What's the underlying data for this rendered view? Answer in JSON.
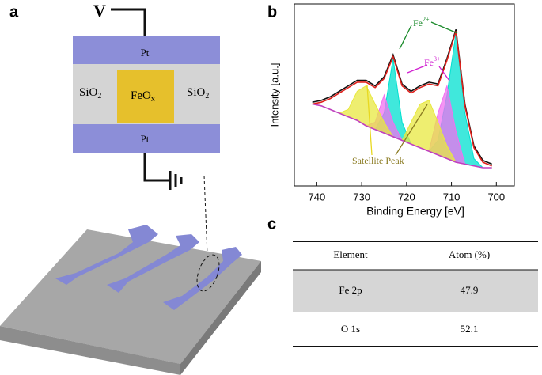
{
  "panels": {
    "a": "a",
    "b": "b",
    "c": "c"
  },
  "diagram": {
    "voltage": "V",
    "top_electrode": "Pt",
    "bottom_electrode": "Pt",
    "left": {
      "text": "SiO",
      "sub": "2"
    },
    "center": {
      "text": "FeO",
      "sub": "x"
    },
    "right": {
      "text": "SiO",
      "sub": "2"
    }
  },
  "chart_data": {
    "type": "line",
    "xlabel": "Binding  Energy [eV]",
    "ylabel": "Intensity [a.u.]",
    "xlim": [
      745,
      696
    ],
    "ylim": [
      0,
      100
    ],
    "xticks": [
      740,
      730,
      720,
      710,
      700
    ],
    "x": [
      741,
      739,
      737,
      735,
      733,
      731,
      729,
      727,
      725,
      723,
      721,
      719,
      717,
      715,
      713,
      711,
      709,
      707,
      705,
      703,
      701
    ],
    "series": [
      {
        "color": "#111111",
        "style": "line",
        "values": [
          46,
          47,
          49,
          52,
          55,
          58,
          58,
          55,
          60,
          72,
          56,
          52,
          55,
          57,
          56,
          70,
          86,
          45,
          22,
          14,
          12
        ]
      },
      {
        "color": "#e0201b",
        "style": "line",
        "values": [
          45,
          46,
          48,
          51,
          54,
          57,
          57,
          54,
          59,
          71,
          55,
          51,
          54,
          56,
          55,
          69,
          85,
          44,
          21,
          13,
          11
        ]
      },
      {
        "color": "#c040c0",
        "style": "line",
        "values": [
          45,
          44,
          42,
          40,
          38,
          36,
          33,
          31,
          29,
          27,
          25,
          23,
          21,
          19,
          17,
          15,
          13,
          12,
          11,
          10,
          10
        ]
      },
      {
        "color": "#00e0d0",
        "style": "area",
        "values": [
          45,
          44,
          42,
          40,
          38,
          36,
          33,
          31,
          40,
          70,
          35,
          23,
          21,
          19,
          25,
          50,
          84,
          40,
          15,
          10,
          10
        ]
      },
      {
        "color": "#f070f0",
        "style": "area",
        "values": [
          45,
          44,
          42,
          40,
          38,
          36,
          33,
          35,
          50,
          35,
          25,
          23,
          21,
          19,
          40,
          55,
          30,
          12,
          11,
          10,
          10
        ]
      },
      {
        "color": "#e8e840",
        "style": "area",
        "values": [
          45,
          44,
          42,
          40,
          42,
          52,
          55,
          45,
          35,
          27,
          25,
          35,
          45,
          47,
          35,
          22,
          13,
          12,
          11,
          10,
          10
        ]
      }
    ],
    "annotations": [
      {
        "text": "Fe",
        "sup": "2+",
        "color": "#1a8a2a"
      },
      {
        "text": "Fe",
        "sup": "3+",
        "color": "#d020d0"
      },
      {
        "text": "Satellite Peak",
        "color": "#8a7a20"
      }
    ]
  },
  "table": {
    "header": [
      "Element",
      "Atom (%)"
    ],
    "rows": [
      [
        "Fe 2p",
        "47.9"
      ],
      [
        "O 1s",
        "52.1"
      ]
    ]
  }
}
